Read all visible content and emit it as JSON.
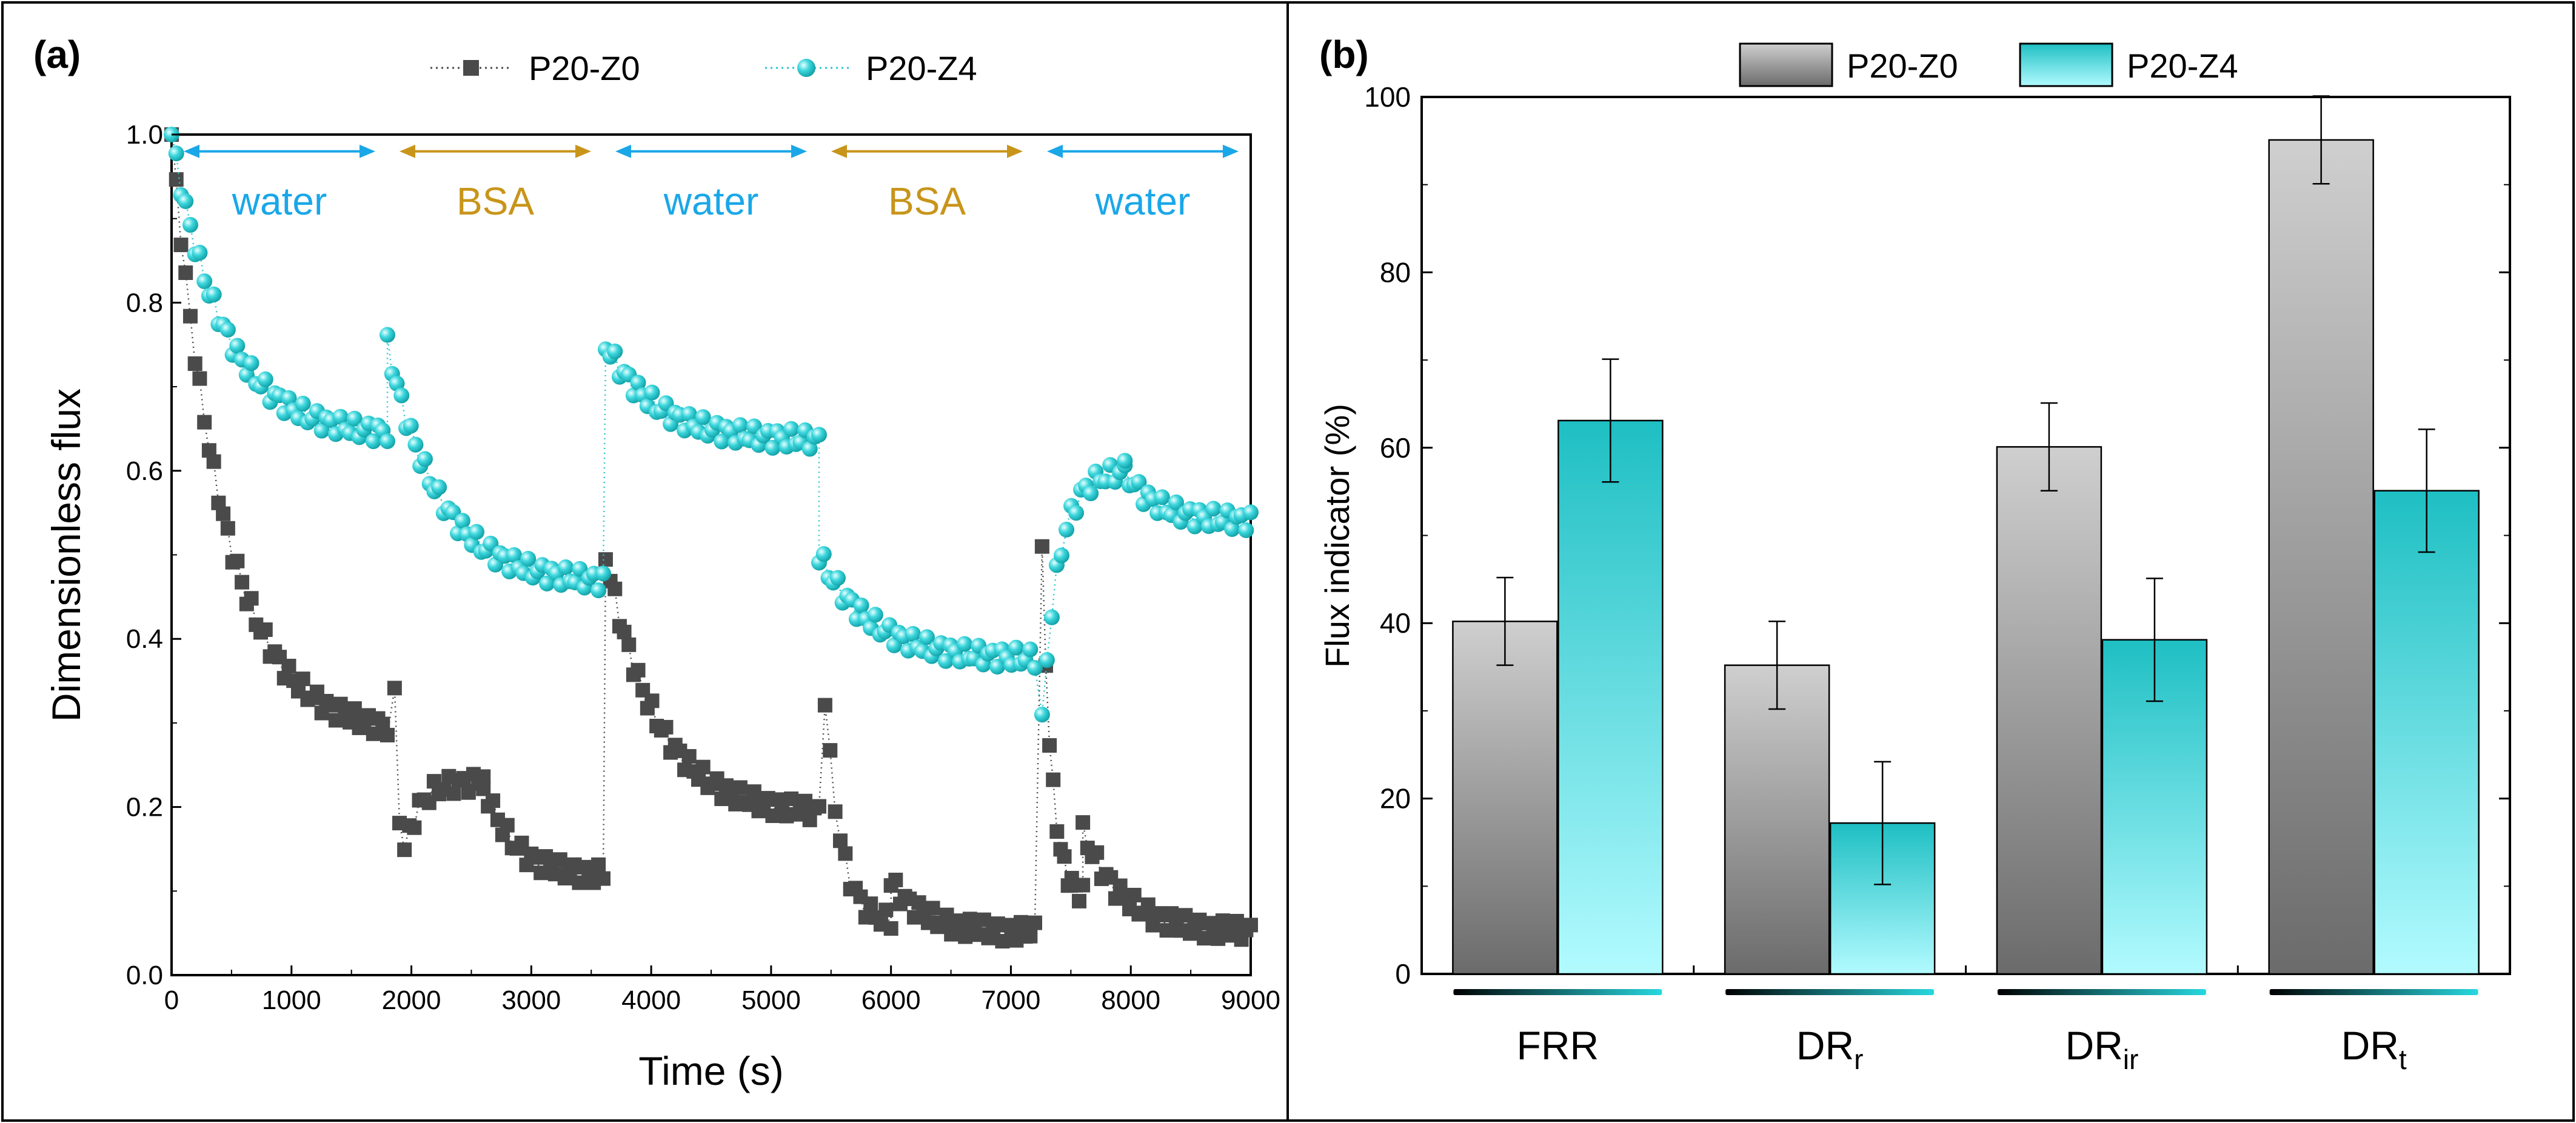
{
  "colors": {
    "p20z0": "#4a4a4a",
    "p20z4": "#26c6cc",
    "water": "#1aa7e8",
    "bsa": "#c8951a",
    "bar_gray_light": "#cfcfcf",
    "bar_gray_dark": "#6b6b6b",
    "bar_cyan_dark": "#1ebfc3",
    "bar_cyan_light": "#b2fbff",
    "frame": "#000000"
  },
  "panel_a": {
    "label": "(a)",
    "legend": [
      {
        "name": "P20-Z0",
        "marker": "square"
      },
      {
        "name": "P20-Z4",
        "marker": "circle"
      }
    ],
    "segments": [
      {
        "label": "water",
        "x_start": 0,
        "x_end": 1800
      },
      {
        "label": "BSA",
        "x_start": 1800,
        "x_end": 3600
      },
      {
        "label": "water",
        "x_start": 3600,
        "x_end": 5400
      },
      {
        "label": "BSA",
        "x_start": 5400,
        "x_end": 7200
      },
      {
        "label": "water",
        "x_start": 7200,
        "x_end": 9000
      }
    ]
  },
  "panel_b": {
    "label": "(b)",
    "legend": [
      {
        "name": "P20-Z0"
      },
      {
        "name": "P20-Z4"
      }
    ]
  },
  "chart_data": [
    {
      "type": "scatter",
      "title": "",
      "xlabel": "Time (s)",
      "ylabel": "Dimensionless flux",
      "xlim": [
        0,
        9000
      ],
      "ylim": [
        0,
        1.0
      ],
      "xticks": [
        0,
        1000,
        2000,
        3000,
        4000,
        5000,
        6000,
        7000,
        8000,
        9000
      ],
      "yticks": [
        0.0,
        0.2,
        0.4,
        0.6,
        0.8,
        1.0
      ],
      "series": [
        {
          "name": "P20-Z0",
          "marker": "square",
          "line": "dotted",
          "cycles": [
            {
              "x_start": 0,
              "x_end": 1800,
              "y_start": 1.0,
              "y_end": 0.285,
              "mode": "decay"
            },
            {
              "x_start": 1860,
              "x_end": 2600,
              "y_start": 0.33,
              "y_end": 0.23,
              "mode": "rise_from",
              "y_min": 0.13
            },
            {
              "x_start": 2600,
              "x_end": 3600,
              "y_start": 0.23,
              "y_end": 0.118,
              "mode": "decay"
            },
            {
              "x_start": 3620,
              "x_end": 5400,
              "y_start": 0.5,
              "y_end": 0.19,
              "mode": "decay"
            },
            {
              "x_start": 5450,
              "x_end": 6000,
              "y_start": 0.33,
              "y_end": 0.06,
              "mode": "decay"
            },
            {
              "x_start": 6000,
              "x_end": 7200,
              "y_start": 0.11,
              "y_end": 0.05,
              "mode": "decay"
            },
            {
              "x_start": 7260,
              "x_end": 7600,
              "y_start": 0.5,
              "y_end": 0.09,
              "mode": "decay"
            },
            {
              "x_start": 7600,
              "x_end": 9000,
              "y_start": 0.17,
              "y_end": 0.05,
              "mode": "decay"
            }
          ]
        },
        {
          "name": "P20-Z4",
          "marker": "circle",
          "line": "dotted",
          "cycles": [
            {
              "x_start": 0,
              "x_end": 1800,
              "y_start": 1.0,
              "y_end": 0.64,
              "mode": "decay"
            },
            {
              "x_start": 1800,
              "x_end": 3600,
              "y_start": 0.75,
              "y_end": 0.465,
              "mode": "decay"
            },
            {
              "x_start": 3620,
              "x_end": 5400,
              "y_start": 0.75,
              "y_end": 0.635,
              "mode": "decay"
            },
            {
              "x_start": 5400,
              "x_end": 7200,
              "y_start": 0.5,
              "y_end": 0.375,
              "mode": "decay"
            },
            {
              "x_start": 7260,
              "x_end": 7950,
              "y_start": 0.3,
              "y_end": 0.6,
              "mode": "rise"
            },
            {
              "x_start": 7950,
              "x_end": 9000,
              "y_start": 0.6,
              "y_end": 0.54,
              "mode": "decay"
            }
          ]
        }
      ]
    },
    {
      "type": "bar",
      "title": "",
      "xlabel": "",
      "ylabel": "Flux indicator (%)",
      "ylim": [
        0,
        100
      ],
      "yticks": [
        0,
        20,
        40,
        60,
        80,
        100
      ],
      "categories": [
        {
          "base": "FRR",
          "sub": ""
        },
        {
          "base": "DR",
          "sub": "r"
        },
        {
          "base": "DR",
          "sub": "ir"
        },
        {
          "base": "DR",
          "sub": "t"
        }
      ],
      "series": [
        {
          "name": "P20-Z0",
          "values": [
            40.2,
            35.2,
            60.1,
            95.1
          ],
          "errors": [
            5,
            5,
            5,
            5
          ]
        },
        {
          "name": "P20-Z4",
          "values": [
            63.1,
            17.2,
            38.1,
            55.1
          ],
          "errors": [
            7,
            7,
            7,
            7
          ]
        }
      ]
    }
  ]
}
